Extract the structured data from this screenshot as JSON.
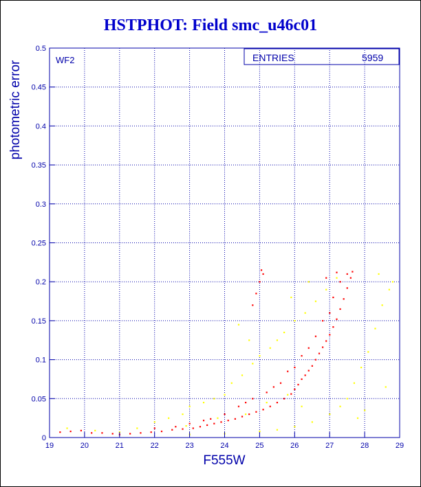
{
  "title": "HSTPHOT: Field smc_u46c01",
  "panel_label": "WF2",
  "stats": {
    "label": "ENTRIES",
    "value": "5959"
  },
  "colors": {
    "axis": "#0000aa",
    "primary_points": "#ff0000",
    "secondary_points": "#ffff00"
  },
  "chart_data": {
    "type": "scatter",
    "xlabel": "F555W",
    "ylabel": "photometric error",
    "xlim": [
      19,
      29
    ],
    "ylim": [
      0,
      0.5
    ],
    "x_ticks": [
      19,
      20,
      21,
      22,
      23,
      24,
      25,
      26,
      27,
      28,
      29
    ],
    "y_ticks": [
      0,
      0.05,
      0.1,
      0.15,
      0.2,
      0.25,
      0.3,
      0.35,
      0.4,
      0.45,
      0.5
    ],
    "y_tick_labels": [
      "0",
      "0.05",
      "0.1",
      "0.15",
      "0.2",
      "0.25",
      "0.3",
      "0.35",
      "0.4",
      "0.45",
      "0.5"
    ],
    "grid": true,
    "series": [
      {
        "color": "#ff0000",
        "points": [
          [
            19.3,
            0.007
          ],
          [
            19.6,
            0.008
          ],
          [
            19.9,
            0.009
          ],
          [
            20.2,
            0.006
          ],
          [
            20.5,
            0.006
          ],
          [
            20.8,
            0.005
          ],
          [
            21.0,
            0.004
          ],
          [
            21.3,
            0.005
          ],
          [
            21.6,
            0.006
          ],
          [
            21.9,
            0.007
          ],
          [
            22.2,
            0.008
          ],
          [
            22.5,
            0.01
          ],
          [
            22.8,
            0.011
          ],
          [
            23.1,
            0.012
          ],
          [
            23.3,
            0.014
          ],
          [
            23.5,
            0.016
          ],
          [
            23.7,
            0.018
          ],
          [
            23.9,
            0.02
          ],
          [
            24.1,
            0.022
          ],
          [
            24.3,
            0.024
          ],
          [
            24.5,
            0.027
          ],
          [
            24.7,
            0.03
          ],
          [
            24.9,
            0.033
          ],
          [
            25.1,
            0.036
          ],
          [
            25.3,
            0.04
          ],
          [
            25.5,
            0.045
          ],
          [
            25.7,
            0.05
          ],
          [
            25.9,
            0.056
          ],
          [
            26.0,
            0.062
          ],
          [
            26.1,
            0.068
          ],
          [
            26.2,
            0.075
          ],
          [
            26.3,
            0.08
          ],
          [
            26.4,
            0.086
          ],
          [
            26.5,
            0.092
          ],
          [
            26.6,
            0.1
          ],
          [
            26.7,
            0.108
          ],
          [
            26.8,
            0.116
          ],
          [
            26.9,
            0.124
          ],
          [
            27.0,
            0.132
          ],
          [
            27.1,
            0.142
          ],
          [
            27.2,
            0.152
          ],
          [
            27.3,
            0.165
          ],
          [
            27.4,
            0.178
          ],
          [
            27.5,
            0.192
          ],
          [
            27.6,
            0.205
          ],
          [
            27.65,
            0.213
          ],
          [
            23.6,
            0.024
          ],
          [
            24.0,
            0.03
          ],
          [
            24.4,
            0.04
          ],
          [
            24.8,
            0.05
          ],
          [
            25.2,
            0.058
          ],
          [
            25.6,
            0.07
          ],
          [
            26.0,
            0.09
          ],
          [
            26.4,
            0.115
          ],
          [
            26.8,
            0.15
          ],
          [
            27.1,
            0.18
          ],
          [
            27.3,
            0.2
          ],
          [
            27.5,
            0.21
          ],
          [
            25.0,
            0.2
          ],
          [
            25.1,
            0.21
          ],
          [
            24.9,
            0.185
          ],
          [
            25.05,
            0.215
          ],
          [
            24.8,
            0.17
          ],
          [
            22.0,
            0.012
          ],
          [
            22.6,
            0.014
          ],
          [
            23.0,
            0.018
          ],
          [
            23.4,
            0.022
          ],
          [
            24.6,
            0.045
          ],
          [
            25.4,
            0.065
          ],
          [
            25.8,
            0.085
          ],
          [
            26.2,
            0.105
          ],
          [
            26.6,
            0.13
          ],
          [
            27.0,
            0.16
          ],
          [
            26.9,
            0.205
          ],
          [
            27.2,
            0.212
          ]
        ]
      },
      {
        "color": "#ffff00",
        "points": [
          [
            19.5,
            0.012
          ],
          [
            20.3,
            0.009
          ],
          [
            21.0,
            0.007
          ],
          [
            21.5,
            0.012
          ],
          [
            22.0,
            0.02
          ],
          [
            22.4,
            0.025
          ],
          [
            22.8,
            0.03
          ],
          [
            23.0,
            0.04
          ],
          [
            23.4,
            0.045
          ],
          [
            23.7,
            0.05
          ],
          [
            24.0,
            0.055
          ],
          [
            24.2,
            0.07
          ],
          [
            24.5,
            0.08
          ],
          [
            24.8,
            0.095
          ],
          [
            25.0,
            0.105
          ],
          [
            25.3,
            0.115
          ],
          [
            25.5,
            0.125
          ],
          [
            25.7,
            0.135
          ],
          [
            26.0,
            0.15
          ],
          [
            26.3,
            0.16
          ],
          [
            26.6,
            0.175
          ],
          [
            26.9,
            0.19
          ],
          [
            27.2,
            0.205
          ],
          [
            23.0,
            0.004
          ],
          [
            24.0,
            0.005
          ],
          [
            25.0,
            0.008
          ],
          [
            25.5,
            0.01
          ],
          [
            26.0,
            0.014
          ],
          [
            26.5,
            0.02
          ],
          [
            27.0,
            0.03
          ],
          [
            27.3,
            0.04
          ],
          [
            27.5,
            0.05
          ],
          [
            27.7,
            0.07
          ],
          [
            27.9,
            0.09
          ],
          [
            28.1,
            0.11
          ],
          [
            28.3,
            0.14
          ],
          [
            28.5,
            0.17
          ],
          [
            28.7,
            0.19
          ],
          [
            28.8,
            0.2
          ],
          [
            28.4,
            0.21
          ],
          [
            25.2,
            0.045
          ],
          [
            25.8,
            0.055
          ],
          [
            26.2,
            0.04
          ],
          [
            24.6,
            0.03
          ],
          [
            23.8,
            0.025
          ],
          [
            22.9,
            0.015
          ],
          [
            24.4,
            0.145
          ],
          [
            24.7,
            0.125
          ],
          [
            25.9,
            0.18
          ],
          [
            26.4,
            0.2
          ],
          [
            27.8,
            0.025
          ],
          [
            28.0,
            0.035
          ],
          [
            28.6,
            0.065
          ]
        ]
      }
    ]
  }
}
